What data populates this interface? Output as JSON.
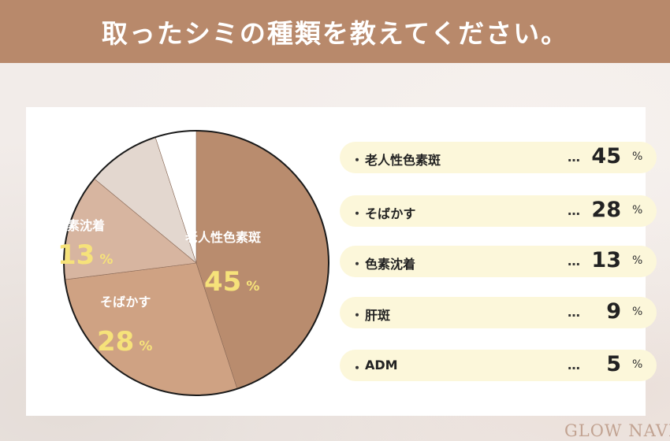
{
  "header": {
    "title": "取ったシミの種類を教えてください。"
  },
  "chart_data": {
    "type": "pie",
    "title": "",
    "unit": "%",
    "categories": [
      "老人性色素斑",
      "そばかす",
      "色素沈着",
      "肝斑",
      "ADM"
    ],
    "values": [
      45,
      28,
      13,
      9,
      5
    ],
    "colors": [
      "#b98c6e",
      "#cfa283",
      "#d7b5a0",
      "#e3d7cf",
      "#ffffff"
    ],
    "slice_labels": [
      {
        "name": "老人性色素斑",
        "value": "45",
        "unit": "%"
      },
      {
        "name": "そばかす",
        "value": "28",
        "unit": "%"
      },
      {
        "name": "色素沈着",
        "value": "13",
        "unit": "%"
      }
    ]
  },
  "legend": {
    "bullet": "・",
    "dots": "…",
    "items": [
      {
        "label": "老人性色素斑",
        "value": "45",
        "unit": "%"
      },
      {
        "label": "そばかす",
        "value": "28",
        "unit": "%"
      },
      {
        "label": "色素沈着",
        "value": "13",
        "unit": "%"
      },
      {
        "label": "肝斑",
        "value": "9",
        "unit": "%"
      },
      {
        "label": "ADM",
        "value": "5",
        "unit": "%"
      }
    ]
  },
  "logo": {
    "text": "GLOW NAVI"
  }
}
